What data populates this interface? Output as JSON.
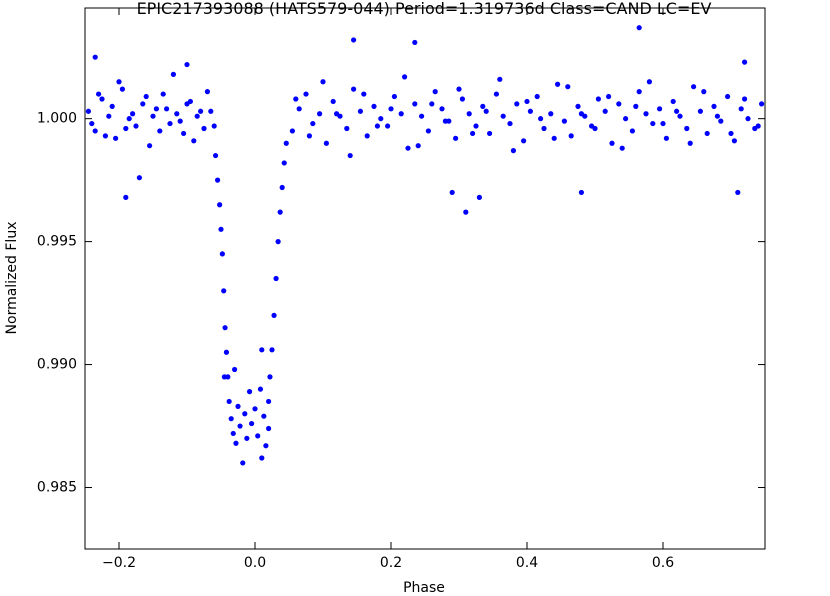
{
  "chart_data": {
    "type": "scatter",
    "title": "EPIC217393088 (HATS579-044)  Period=1.319736d  Class=CAND  LC=EV",
    "x_label": "Phase",
    "y_label": "Normalized Flux",
    "color": "#0000ff",
    "xlim": [
      -0.25,
      0.75
    ],
    "ylim": [
      0.9825,
      1.0045
    ],
    "xticks": [
      {
        "value": -0.2,
        "label": "−0.2"
      },
      {
        "value": 0,
        "label": "0.0"
      },
      0.2,
      0.4,
      0.6
    ],
    "yticks": [
      0.985,
      {
        "value": 0.99,
        "label": "0.990"
      },
      0.995,
      {
        "value": 1,
        "label": "1.000"
      }
    ],
    "x": [
      -0.245,
      -0.235,
      -0.225,
      -0.215,
      -0.205,
      -0.195,
      -0.185,
      -0.175,
      -0.165,
      -0.155,
      -0.145,
      -0.135,
      -0.125,
      -0.115,
      -0.105,
      -0.095,
      -0.085,
      -0.075,
      -0.065,
      -0.24,
      -0.23,
      -0.22,
      -0.21,
      -0.2,
      -0.19,
      -0.18,
      -0.17,
      -0.16,
      -0.15,
      -0.14,
      -0.13,
      -0.12,
      -0.11,
      -0.1,
      -0.09,
      -0.08,
      -0.07,
      -0.06,
      -0.058,
      -0.055,
      -0.052,
      -0.05,
      -0.048,
      -0.046,
      -0.044,
      -0.042,
      -0.04,
      -0.038,
      -0.035,
      -0.032,
      -0.028,
      -0.025,
      -0.022,
      -0.018,
      -0.015,
      -0.012,
      -0.008,
      -0.005,
      0,
      0.004,
      0.008,
      0.01,
      0.013,
      0.016,
      0.02,
      0.022,
      0.025,
      0.028,
      0.031,
      0.034,
      0.037,
      0.04,
      0.043,
      0.046,
      -0.045,
      -0.03,
      0.01,
      0.02,
      0.055,
      0.065,
      0.075,
      0.085,
      0.095,
      0.105,
      0.115,
      0.125,
      0.135,
      0.145,
      0.155,
      0.165,
      0.175,
      0.185,
      0.195,
      0.205,
      0.215,
      0.225,
      0.235,
      0.245,
      0.255,
      0.265,
      0.275,
      0.285,
      0.295,
      0.305,
      0.315,
      0.325,
      0.335,
      0.345,
      0.355,
      0.365,
      0.375,
      0.385,
      0.395,
      0.405,
      0.415,
      0.425,
      0.435,
      0.445,
      0.455,
      0.465,
      0.475,
      0.485,
      0.495,
      0.505,
      0.515,
      0.525,
      0.535,
      0.545,
      0.555,
      0.565,
      0.575,
      0.585,
      0.595,
      0.605,
      0.615,
      0.625,
      0.635,
      0.645,
      0.655,
      0.665,
      0.675,
      0.685,
      0.695,
      0.705,
      0.715,
      0.725,
      0.735,
      0.745,
      0.06,
      0.08,
      0.1,
      0.12,
      0.14,
      0.16,
      0.18,
      0.2,
      0.22,
      0.24,
      0.26,
      0.28,
      0.3,
      0.32,
      0.34,
      0.36,
      0.38,
      0.4,
      0.42,
      0.44,
      0.46,
      0.48,
      0.5,
      0.52,
      0.54,
      0.56,
      0.58,
      0.6,
      0.62,
      0.64,
      0.66,
      0.68,
      0.7,
      0.72,
      0.74,
      -0.19,
      -0.235,
      -0.1,
      0.145,
      0.235,
      0.565,
      0.31,
      0.33,
      0.48,
      0.71,
      0.29,
      0.72
    ],
    "values": [
      1.0003,
      0.9995,
      1.0008,
      1.0001,
      0.9992,
      1.0012,
      1.0,
      0.9997,
      1.0006,
      0.9989,
      1.0004,
      1.001,
      0.9998,
      1.0002,
      0.9994,
      1.0007,
      1.0001,
      0.9996,
      1.0003,
      0.9998,
      1.001,
      0.9993,
      1.0005,
      1.0015,
      0.9996,
      1.0002,
      0.9976,
      1.0009,
      1.0001,
      0.9995,
      1.0004,
      1.0018,
      0.9999,
      1.0006,
      0.9991,
      1.0003,
      1.0011,
      0.9997,
      0.9985,
      0.9975,
      0.9965,
      0.9955,
      0.9945,
      0.993,
      0.9915,
      0.9905,
      0.9895,
      0.9885,
      0.9878,
      0.9872,
      0.9868,
      0.9883,
      0.9875,
      0.986,
      0.988,
      0.987,
      0.9889,
      0.9876,
      0.9882,
      0.9871,
      0.989,
      0.9862,
      0.9879,
      0.9867,
      0.9885,
      0.9895,
      0.9906,
      0.992,
      0.9935,
      0.995,
      0.9962,
      0.9972,
      0.9982,
      0.999,
      0.9895,
      0.9898,
      0.9906,
      0.9874,
      0.9995,
      1.0004,
      1.001,
      0.9998,
      1.0002,
      0.999,
      1.0007,
      1.0001,
      0.9996,
      1.0012,
      1.0003,
      0.9993,
      1.0005,
      1.0,
      0.9997,
      1.0009,
      1.0002,
      0.9988,
      1.0006,
      1.0001,
      0.9995,
      1.0011,
      1.0004,
      0.9999,
      0.9992,
      1.0008,
      1.0002,
      0.9997,
      1.0005,
      0.9994,
      1.001,
      1.0001,
      0.9998,
      1.0006,
      0.9991,
      1.0003,
      1.0009,
      0.9996,
      1.0002,
      1.0014,
      0.9999,
      0.9993,
      1.0005,
      1.0001,
      0.9997,
      1.0008,
      1.0003,
      0.999,
      1.0006,
      1.0,
      0.9995,
      1.0011,
      1.0002,
      0.9998,
      1.0004,
      0.9992,
      1.0007,
      1.0001,
      0.9996,
      1.0013,
      1.0003,
      0.9994,
      1.0005,
      0.9999,
      1.0009,
      0.9991,
      1.0004,
      1.0,
      0.9996,
      1.0006,
      1.0008,
      0.9993,
      1.0015,
      1.0002,
      0.9985,
      1.001,
      0.9997,
      1.0004,
      1.0017,
      0.9989,
      1.0006,
      0.9999,
      1.0012,
      0.9994,
      1.0003,
      1.0016,
      0.9987,
      1.0007,
      1.0,
      0.9992,
      1.0013,
      1.0002,
      0.9996,
      1.0009,
      0.9988,
      1.0005,
      1.0015,
      0.9998,
      1.0003,
      0.999,
      1.0011,
      1.0001,
      0.9994,
      1.0008,
      0.9997,
      0.9968,
      1.0025,
      1.0022,
      1.0032,
      1.0031,
      1.0037,
      0.9962,
      0.9968,
      0.997,
      0.997,
      0.997,
      1.0023
    ]
  }
}
